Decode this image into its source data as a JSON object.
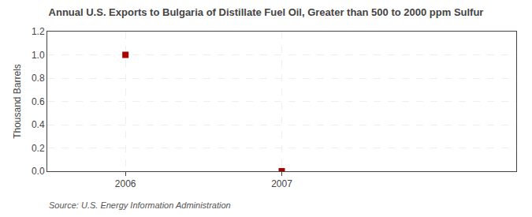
{
  "chart_data": {
    "type": "scatter",
    "title": "Annual U.S. Exports to Bulgaria of Distillate Fuel Oil, Greater than 500 to 2000 ppm Sulfur",
    "ylabel": "Thousand Barrels",
    "x": [
      2006,
      2007
    ],
    "values": [
      1.0,
      0.0
    ],
    "color": "#aa0000",
    "marker": "square",
    "xlim": [
      2005.5,
      2008.5
    ],
    "ylim": [
      0.0,
      1.2
    ],
    "xticks": [
      2006,
      2007
    ],
    "yticks": [
      {
        "value": 0.0,
        "label": "0.0"
      },
      0.2,
      0.4,
      0.6,
      0.8,
      {
        "value": 1.0,
        "label": "1.0"
      },
      1.2
    ],
    "grid": true,
    "annotations": [
      "Source: U.S. Energy Information Administration"
    ]
  }
}
